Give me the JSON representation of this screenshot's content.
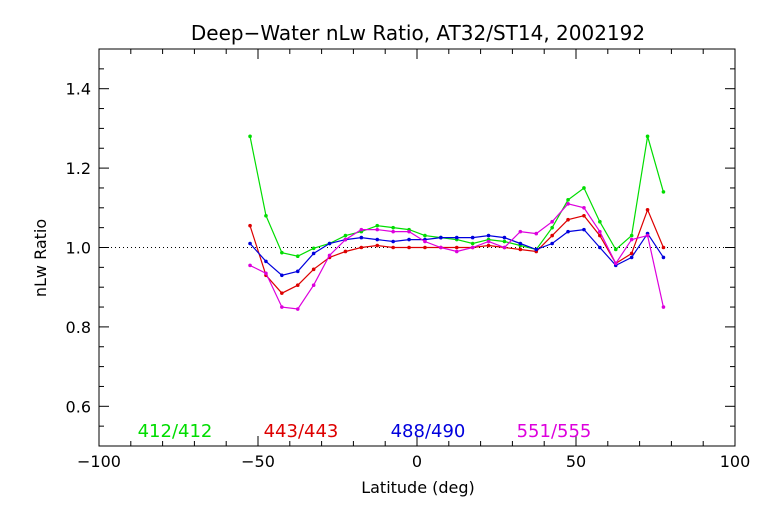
{
  "chart_data": {
    "type": "line",
    "title": "Deep−Water nLw Ratio, AT32/ST14, 2002192",
    "xlabel": "Latitude (deg)",
    "ylabel": "nLw Ratio",
    "xlim": [
      -100,
      100
    ],
    "ylim": [
      0.5,
      1.5
    ],
    "xticks": [
      -100,
      -50,
      0,
      50,
      100
    ],
    "xtick_labels": [
      "−100",
      "−50",
      "0",
      "50",
      "100"
    ],
    "yticks": [
      0.6,
      0.8,
      1.0,
      1.2,
      1.4
    ],
    "ytick_labels": [
      "0.6",
      "0.8",
      "1.0",
      "1.2",
      "1.4"
    ],
    "reference_line": {
      "y": 1.0,
      "style": "dotted"
    },
    "grid": false,
    "legend_placement": "bottom-inside",
    "x": [
      -52.5,
      -47.5,
      -42.5,
      -37.5,
      -32.5,
      -27.5,
      -22.5,
      -17.5,
      -12.5,
      -7.5,
      -2.5,
      2.5,
      7.5,
      12.5,
      17.5,
      22.5,
      27.5,
      32.5,
      37.5,
      42.5,
      47.5,
      52.5,
      57.5,
      62.5,
      67.5,
      72.5,
      77.5
    ],
    "series": [
      {
        "name": "412/412",
        "color": "#00dd00",
        "values": [
          1.28,
          1.08,
          0.987,
          0.978,
          0.998,
          1.01,
          1.03,
          1.04,
          1.055,
          1.05,
          1.045,
          1.03,
          1.025,
          1.02,
          1.01,
          1.02,
          1.015,
          1.005,
          0.995,
          1.05,
          1.12,
          1.15,
          1.065,
          0.995,
          1.03,
          1.28,
          1.14
        ]
      },
      {
        "name": "443/443",
        "color": "#dd0000",
        "values": [
          1.055,
          0.93,
          0.885,
          0.905,
          0.945,
          0.975,
          0.99,
          1.0,
          1.005,
          1.0,
          1.0,
          1.0,
          1.0,
          1.0,
          1.0,
          1.005,
          1.0,
          0.995,
          0.99,
          1.03,
          1.07,
          1.08,
          1.03,
          0.96,
          0.985,
          1.095,
          1.0
        ]
      },
      {
        "name": "488/490",
        "color": "#0000dd",
        "values": [
          1.01,
          0.965,
          0.93,
          0.94,
          0.985,
          1.01,
          1.02,
          1.025,
          1.02,
          1.015,
          1.02,
          1.02,
          1.025,
          1.025,
          1.025,
          1.03,
          1.025,
          1.01,
          0.995,
          1.01,
          1.04,
          1.045,
          1.0,
          0.955,
          0.975,
          1.035,
          0.975
        ]
      },
      {
        "name": "551/555",
        "color": "#dd00dd",
        "values": [
          0.955,
          0.935,
          0.85,
          0.845,
          0.905,
          0.98,
          1.02,
          1.045,
          1.045,
          1.04,
          1.04,
          1.015,
          1.0,
          0.99,
          1.0,
          1.015,
          1.0,
          1.04,
          1.035,
          1.065,
          1.11,
          1.1,
          1.04,
          0.96,
          1.02,
          1.03,
          0.85
        ]
      }
    ]
  }
}
